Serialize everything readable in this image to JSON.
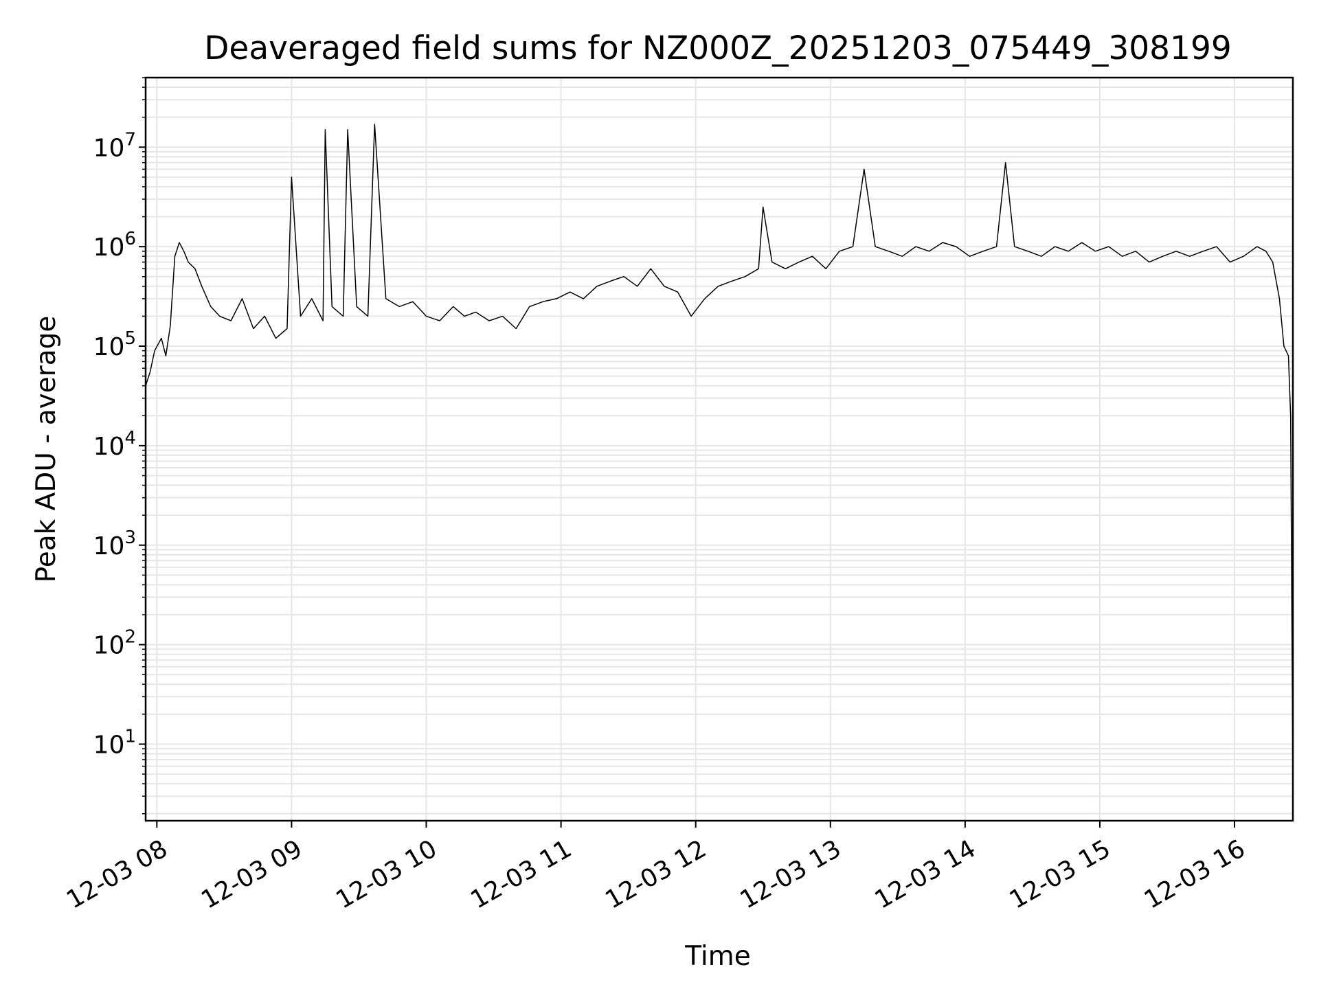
{
  "chart_data": {
    "type": "line",
    "title": "Deaveraged field sums for NZ000Z_20251203_075449_308199",
    "xlabel": "Time",
    "ylabel": "Peak ADU - average",
    "yscale": "log",
    "grid": true,
    "legend": "none",
    "line_color": "#000000",
    "grid_color": "#e6e6e6",
    "xlim": [
      "2025-12-03 07:55",
      "2025-12-03 16:26"
    ],
    "ylim": [
      1.7,
      50000000
    ],
    "x_ticks": [
      {
        "value": "2025-12-03 08:00",
        "label": "12-03 08"
      },
      {
        "value": "2025-12-03 09:00",
        "label": "12-03 09"
      },
      {
        "value": "2025-12-03 10:00",
        "label": "12-03 10"
      },
      {
        "value": "2025-12-03 11:00",
        "label": "12-03 11"
      },
      {
        "value": "2025-12-03 12:00",
        "label": "12-03 12"
      },
      {
        "value": "2025-12-03 13:00",
        "label": "12-03 13"
      },
      {
        "value": "2025-12-03 14:00",
        "label": "12-03 14"
      },
      {
        "value": "2025-12-03 15:00",
        "label": "12-03 15"
      },
      {
        "value": "2025-12-03 16:00",
        "label": "12-03 16"
      }
    ],
    "y_ticks": [
      {
        "value": 10,
        "base": "10",
        "exp": "1"
      },
      {
        "value": 100,
        "base": "10",
        "exp": "2"
      },
      {
        "value": 1000,
        "base": "10",
        "exp": "3"
      },
      {
        "value": 10000,
        "base": "10",
        "exp": "4"
      },
      {
        "value": 100000,
        "base": "10",
        "exp": "5"
      },
      {
        "value": 1000000,
        "base": "10",
        "exp": "6"
      },
      {
        "value": 10000000,
        "base": "10",
        "exp": "7"
      }
    ],
    "series": [
      {
        "x": [
          "2025-12-03 07:55",
          "2025-12-03 07:57",
          "2025-12-03 07:59",
          "2025-12-03 08:02",
          "2025-12-03 08:04",
          "2025-12-03 08:06",
          "2025-12-03 08:08",
          "2025-12-03 08:10",
          "2025-12-03 08:12",
          "2025-12-03 08:14",
          "2025-12-03 08:17",
          "2025-12-03 08:20",
          "2025-12-03 08:24",
          "2025-12-03 08:28",
          "2025-12-03 08:33",
          "2025-12-03 08:38",
          "2025-12-03 08:43",
          "2025-12-03 08:48",
          "2025-12-03 08:53",
          "2025-12-03 08:58",
          "2025-12-03 09:00",
          "2025-12-03 09:04",
          "2025-12-03 09:09",
          "2025-12-03 09:14",
          "2025-12-03 09:15",
          "2025-12-03 09:18",
          "2025-12-03 09:23",
          "2025-12-03 09:25",
          "2025-12-03 09:29",
          "2025-12-03 09:34",
          "2025-12-03 09:37",
          "2025-12-03 09:42",
          "2025-12-03 09:48",
          "2025-12-03 09:54",
          "2025-12-03 10:00",
          "2025-12-03 10:06",
          "2025-12-03 10:12",
          "2025-12-03 10:17",
          "2025-12-03 10:22",
          "2025-12-03 10:28",
          "2025-12-03 10:34",
          "2025-12-03 10:40",
          "2025-12-03 10:46",
          "2025-12-03 10:52",
          "2025-12-03 10:58",
          "2025-12-03 11:04",
          "2025-12-03 11:10",
          "2025-12-03 11:16",
          "2025-12-03 11:22",
          "2025-12-03 11:28",
          "2025-12-03 11:34",
          "2025-12-03 11:40",
          "2025-12-03 11:46",
          "2025-12-03 11:52",
          "2025-12-03 11:58",
          "2025-12-03 12:04",
          "2025-12-03 12:10",
          "2025-12-03 12:16",
          "2025-12-03 12:22",
          "2025-12-03 12:28",
          "2025-12-03 12:30",
          "2025-12-03 12:34",
          "2025-12-03 12:40",
          "2025-12-03 12:46",
          "2025-12-03 12:52",
          "2025-12-03 12:58",
          "2025-12-03 13:04",
          "2025-12-03 13:10",
          "2025-12-03 13:15",
          "2025-12-03 13:20",
          "2025-12-03 13:26",
          "2025-12-03 13:32",
          "2025-12-03 13:38",
          "2025-12-03 13:44",
          "2025-12-03 13:50",
          "2025-12-03 13:56",
          "2025-12-03 14:02",
          "2025-12-03 14:08",
          "2025-12-03 14:14",
          "2025-12-03 14:18",
          "2025-12-03 14:22",
          "2025-12-03 14:28",
          "2025-12-03 14:34",
          "2025-12-03 14:40",
          "2025-12-03 14:46",
          "2025-12-03 14:52",
          "2025-12-03 14:58",
          "2025-12-03 15:04",
          "2025-12-03 15:10",
          "2025-12-03 15:16",
          "2025-12-03 15:22",
          "2025-12-03 15:28",
          "2025-12-03 15:34",
          "2025-12-03 15:40",
          "2025-12-03 15:46",
          "2025-12-03 15:52",
          "2025-12-03 15:58",
          "2025-12-03 16:04",
          "2025-12-03 16:10",
          "2025-12-03 16:14",
          "2025-12-03 16:17",
          "2025-12-03 16:20",
          "2025-12-03 16:22",
          "2025-12-03 16:24",
          "2025-12-03 16:25",
          "2025-12-03 16:26"
        ],
        "y": [
          40000,
          55000,
          90000,
          120000,
          80000,
          160000,
          800000,
          1100000,
          900000,
          700000,
          600000,
          400000,
          250000,
          200000,
          180000,
          300000,
          150000,
          200000,
          120000,
          150000,
          5000000,
          200000,
          300000,
          180000,
          15000000,
          250000,
          200000,
          15000000,
          250000,
          200000,
          17000000,
          300000,
          250000,
          280000,
          200000,
          180000,
          250000,
          200000,
          220000,
          180000,
          200000,
          150000,
          250000,
          280000,
          300000,
          350000,
          300000,
          400000,
          450000,
          500000,
          400000,
          600000,
          400000,
          350000,
          200000,
          300000,
          400000,
          450000,
          500000,
          600000,
          2500000,
          700000,
          600000,
          700000,
          800000,
          600000,
          900000,
          1000000,
          6000000,
          1000000,
          900000,
          800000,
          1000000,
          900000,
          1100000,
          1000000,
          800000,
          900000,
          1000000,
          7000000,
          1000000,
          900000,
          800000,
          1000000,
          900000,
          1100000,
          900000,
          1000000,
          800000,
          900000,
          700000,
          800000,
          900000,
          800000,
          900000,
          1000000,
          700000,
          800000,
          1000000,
          900000,
          700000,
          300000,
          100000,
          80000,
          20000,
          4
        ]
      }
    ]
  }
}
